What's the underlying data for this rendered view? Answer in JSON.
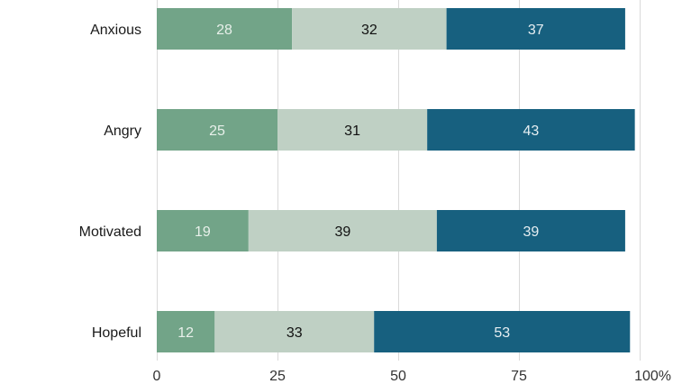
{
  "chart_data": {
    "type": "bar",
    "orientation": "horizontal",
    "stacked": true,
    "categories": [
      "Anxious",
      "Angry",
      "Motivated",
      "Hopeful"
    ],
    "series": [
      {
        "values": [
          28,
          25,
          19,
          12
        ],
        "color": "#72a488",
        "label_color": "#e8f0ea"
      },
      {
        "values": [
          32,
          31,
          39,
          33
        ],
        "color": "#bfd0c4",
        "label_color": "#111111"
      },
      {
        "values": [
          37,
          43,
          39,
          53
        ],
        "color": "#17607f",
        "label_color": "#e6eef2"
      }
    ],
    "x_ticks": [
      "0",
      "25",
      "50",
      "75",
      "100%"
    ],
    "x_tick_values": [
      0,
      25,
      50,
      75,
      100
    ],
    "xlim": [
      0,
      100
    ],
    "grid": "vertical",
    "legend": "none",
    "title": "",
    "xlabel": "",
    "ylabel": ""
  }
}
